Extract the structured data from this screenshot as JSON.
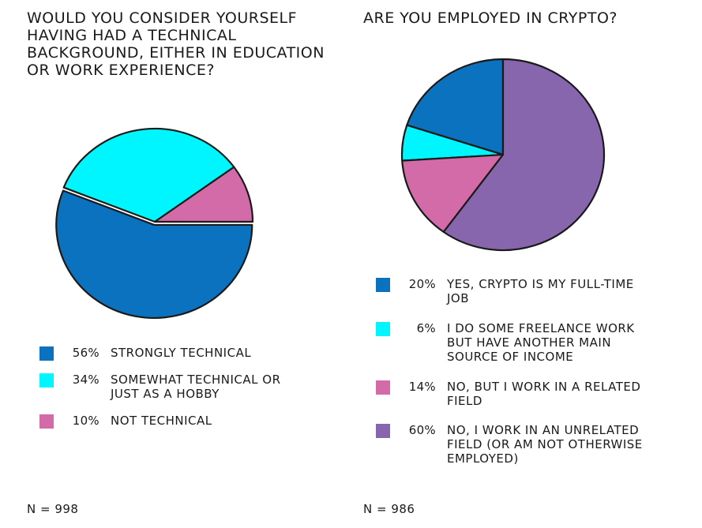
{
  "chart_data": [
    {
      "type": "pie",
      "title": "Would you consider yourself having had a technical background, either in education or work experience?",
      "slices": [
        {
          "label": "Strongly technical",
          "pct_label": "56%",
          "value": 56,
          "color": "#0b72bf"
        },
        {
          "label": "Somewhat technical or just as a hobby",
          "pct_label": "34%",
          "value": 34,
          "color": "#00f6ff"
        },
        {
          "label": "Not technical",
          "pct_label": "10%",
          "value": 10,
          "color": "#d36ba9"
        }
      ],
      "n_label": "N = 998",
      "legend": "bottom"
    },
    {
      "type": "pie",
      "title": "Are you employed in crypto?",
      "slices": [
        {
          "label": "Yes, crypto is my full-time job",
          "pct_label": "20%",
          "value": 20,
          "color": "#0b72bf"
        },
        {
          "label": "I do some freelance work but have another main source of income",
          "pct_label": "6%",
          "value": 6,
          "color": "#00f6ff"
        },
        {
          "label": "No, but I work in a related field",
          "pct_label": "14%",
          "value": 14,
          "color": "#d36ba9"
        },
        {
          "label": "No, I work in an unrelated field (or am not otherwise employed)",
          "pct_label": "60%",
          "value": 60,
          "color": "#8866ad"
        }
      ],
      "n_label": "N = 986",
      "legend": "bottom"
    }
  ]
}
